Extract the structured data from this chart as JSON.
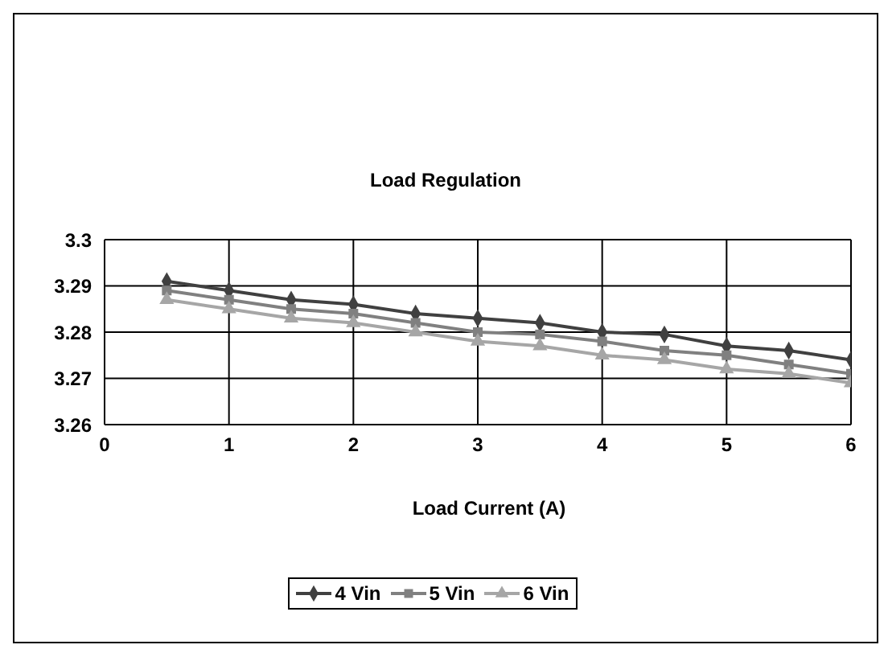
{
  "chart_data": {
    "type": "line",
    "title": "Load Regulation",
    "xlabel": "Load Current (A)",
    "x": [
      0.5,
      1,
      1.5,
      2,
      2.5,
      3,
      3.5,
      4,
      4.5,
      5,
      5.5,
      6
    ],
    "series": [
      {
        "name": "4 Vin",
        "color": "#404040",
        "marker": "diamond",
        "values": [
          3.291,
          3.289,
          3.287,
          3.286,
          3.284,
          3.283,
          3.282,
          3.28,
          3.2795,
          3.277,
          3.276,
          3.274
        ]
      },
      {
        "name": "5 Vin",
        "color": "#808080",
        "marker": "square",
        "values": [
          3.289,
          3.287,
          3.285,
          3.284,
          3.282,
          3.28,
          3.2795,
          3.278,
          3.276,
          3.275,
          3.273,
          3.271
        ]
      },
      {
        "name": "6 Vin",
        "color": "#a6a6a6",
        "marker": "triangle",
        "values": [
          3.287,
          3.285,
          3.283,
          3.282,
          3.28,
          3.278,
          3.277,
          3.275,
          3.274,
          3.272,
          3.271,
          3.269
        ]
      }
    ],
    "xlim": [
      0,
      6
    ],
    "xticks": [
      0,
      1,
      2,
      3,
      4,
      5,
      6
    ],
    "ylim": [
      3.26,
      3.3
    ],
    "yticks": [
      3.26,
      3.27,
      3.28,
      3.29,
      3.3
    ],
    "grid": true,
    "legend": "bottom",
    "line_style": "solid"
  }
}
